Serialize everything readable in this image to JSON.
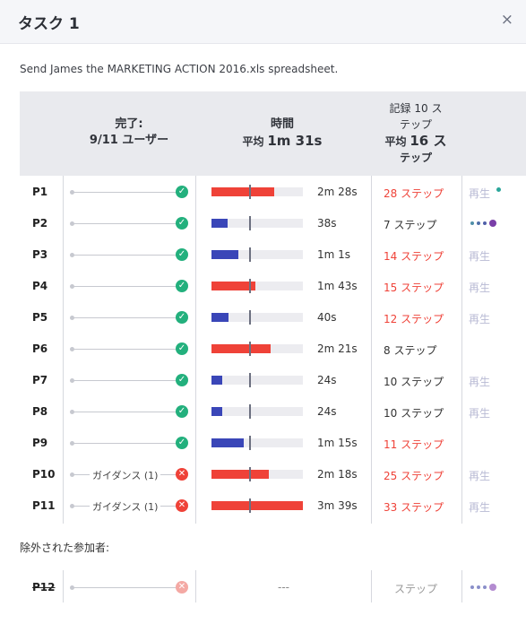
{
  "modal": {
    "title": "タスク 1",
    "close_symbol": "×"
  },
  "task": {
    "description": "Send James the MARKETING ACTION 2016.xls spreadsheet."
  },
  "columns": {
    "completion_label": "完了:",
    "completion_value": "9/11 ユーザー",
    "time_label": "時間",
    "time_avg_prefix": "平均",
    "time_avg_value": "1m 31s",
    "steps_label_line1": "記録 10 ス",
    "steps_label_line2": "テップ",
    "steps_avg_prefix": "平均",
    "steps_avg_value": "16 ス",
    "steps_avg_suffix": "テップ"
  },
  "rows": [
    {
      "id": "P1",
      "guide": "",
      "status": "ok",
      "bar": 0.69,
      "bar_color": "red",
      "time": "2m 28s",
      "steps": "28 ステップ",
      "steps_color": "red",
      "play": "再生",
      "extra": "dot"
    },
    {
      "id": "P2",
      "guide": "",
      "status": "ok",
      "bar": 0.18,
      "bar_color": "blue",
      "time": "38s",
      "steps": "7 ステップ",
      "steps_color": "dark",
      "play": "",
      "extra": "dots"
    },
    {
      "id": "P3",
      "guide": "",
      "status": "ok",
      "bar": 0.29,
      "bar_color": "blue",
      "time": "1m 1s",
      "steps": "14 ステップ",
      "steps_color": "red",
      "play": "再生",
      "extra": ""
    },
    {
      "id": "P4",
      "guide": "",
      "status": "ok",
      "bar": 0.48,
      "bar_color": "red",
      "time": "1m 43s",
      "steps": "15 ステップ",
      "steps_color": "red",
      "play": "再生",
      "extra": ""
    },
    {
      "id": "P5",
      "guide": "",
      "status": "ok",
      "bar": 0.19,
      "bar_color": "blue",
      "time": "40s",
      "steps": "12 ステップ",
      "steps_color": "red",
      "play": "再生",
      "extra": ""
    },
    {
      "id": "P6",
      "guide": "",
      "status": "ok",
      "bar": 0.65,
      "bar_color": "red",
      "time": "2m 21s",
      "steps": "8 ステップ",
      "steps_color": "dark",
      "play": "",
      "extra": ""
    },
    {
      "id": "P7",
      "guide": "",
      "status": "ok",
      "bar": 0.12,
      "bar_color": "blue",
      "time": "24s",
      "steps": "10 ステップ",
      "steps_color": "dark",
      "play": "再生",
      "extra": ""
    },
    {
      "id": "P8",
      "guide": "",
      "status": "ok",
      "bar": 0.12,
      "bar_color": "blue",
      "time": "24s",
      "steps": "10 ステップ",
      "steps_color": "dark",
      "play": "再生",
      "extra": ""
    },
    {
      "id": "P9",
      "guide": "",
      "status": "ok",
      "bar": 0.35,
      "bar_color": "blue",
      "time": "1m 15s",
      "steps": "11 ステップ",
      "steps_color": "red",
      "play": "",
      "extra": ""
    },
    {
      "id": "P10",
      "guide": "ガイダンス (1)",
      "status": "ng",
      "bar": 0.63,
      "bar_color": "red",
      "time": "2m 18s",
      "steps": "25 ステップ",
      "steps_color": "red",
      "play": "再生",
      "extra": ""
    },
    {
      "id": "P11",
      "guide": "ガイダンス (1)",
      "status": "ng",
      "bar": 1.0,
      "bar_color": "red",
      "time": "3m 39s",
      "steps": "33 ステップ",
      "steps_color": "red",
      "play": "再生",
      "extra": ""
    }
  ],
  "excluded": {
    "label": "除外された参加者:",
    "row": {
      "id": "P12",
      "time": "---",
      "steps": "ステップ"
    }
  },
  "icons": {
    "check": "✓",
    "cross": "✕"
  },
  "colors": {
    "red": "#ef4238",
    "blue": "#3a46b8",
    "green": "#23b07d",
    "teal": "#2aa69a",
    "purple": "#7a3fa8"
  }
}
